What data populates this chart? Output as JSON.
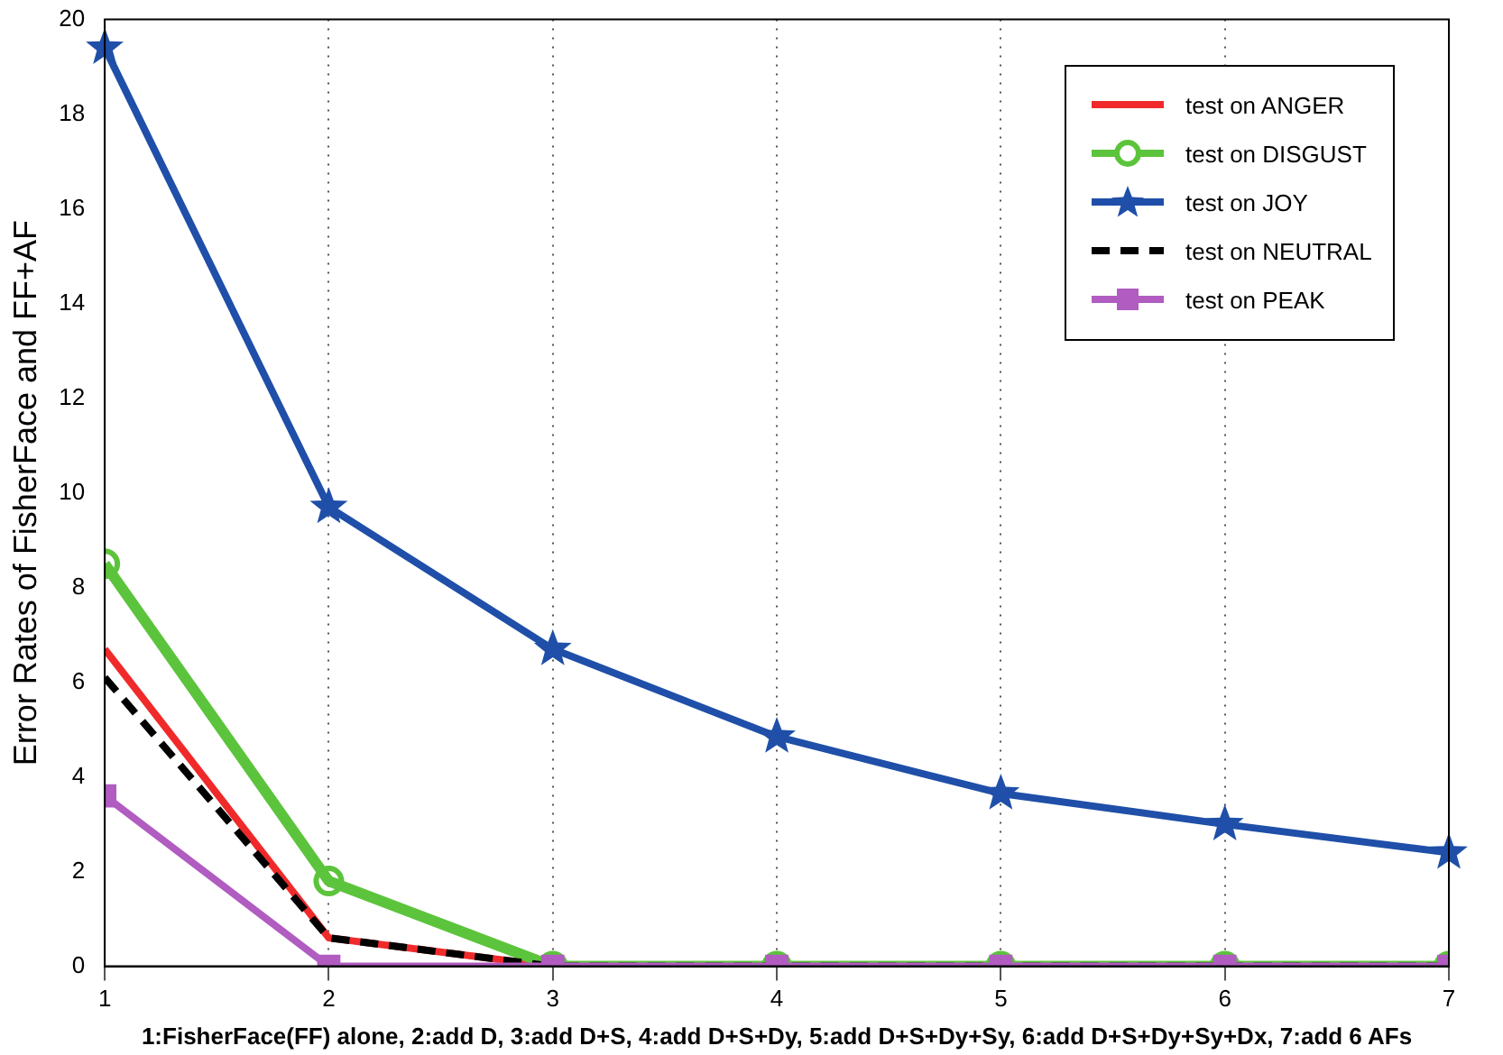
{
  "chart_data": {
    "type": "line",
    "xlabel": "1:FisherFace(FF) alone, 2:add D, 3:add D+S, 4:add D+S+Dy, 5:add D+S+Dy+Sy, 6:add D+S+Dy+Sy+Dx, 7:add 6 AFs",
    "ylabel": "Error Rates of FisherFace and FF+AF",
    "x": [
      1,
      2,
      3,
      4,
      5,
      6,
      7
    ],
    "xlim": [
      1,
      7
    ],
    "xticks": [
      1,
      2,
      3,
      4,
      5,
      6,
      7
    ],
    "ylim": [
      0,
      20
    ],
    "yticks": [
      0,
      2,
      4,
      6,
      8,
      10,
      12,
      14,
      16,
      18,
      20
    ],
    "grid": "x",
    "legend": "top right",
    "series": [
      {
        "name": "test on ANGER",
        "color": "#f02a2a",
        "marker": "none",
        "line_style": "solid",
        "values": [
          6.7,
          0.6,
          0,
          null,
          null,
          null,
          null
        ]
      },
      {
        "name": "test on DISGUST",
        "color": "#5cc43c",
        "marker": "circle",
        "line_style": "solid",
        "values": [
          8.5,
          1.8,
          0,
          0,
          0,
          0,
          0
        ]
      },
      {
        "name": "test on JOY",
        "color": "#1f4fa8",
        "marker": "star",
        "line_style": "solid",
        "values": [
          19.4,
          9.7,
          6.7,
          4.85,
          3.65,
          3.0,
          2.4
        ]
      },
      {
        "name": "test on NEUTRAL",
        "color": "#000000",
        "marker": "none",
        "line_style": "dashed",
        "values": [
          6.1,
          0.6,
          0,
          0,
          0,
          0,
          0
        ]
      },
      {
        "name": "test on PEAK",
        "color": "#b05cc0",
        "marker": "square",
        "line_style": "solid",
        "values": [
          3.6,
          0,
          0,
          0,
          0,
          0,
          0
        ]
      }
    ]
  }
}
